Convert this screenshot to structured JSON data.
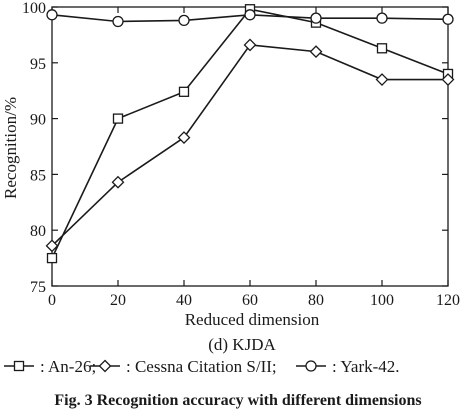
{
  "chart_data": {
    "type": "line",
    "x": [
      0,
      20,
      40,
      60,
      80,
      100,
      120
    ],
    "series": [
      {
        "name": "An-26",
        "marker": "square",
        "values": [
          77.5,
          90.0,
          92.4,
          99.8,
          98.6,
          96.3,
          94.0
        ]
      },
      {
        "name": "Cessna Citation S/II",
        "marker": "diamond",
        "values": [
          78.6,
          84.3,
          88.3,
          96.6,
          96.0,
          93.5,
          93.5
        ]
      },
      {
        "name": "Yark-42",
        "marker": "circle",
        "values": [
          99.3,
          98.7,
          98.8,
          99.3,
          99.0,
          99.0,
          98.9
        ]
      }
    ],
    "xlabel": "Reduced dimension",
    "ylabel": "Recognition/%",
    "xlim": [
      0,
      120
    ],
    "ylim": [
      75,
      100
    ],
    "xticks": [
      "0",
      "20",
      "40",
      "60",
      "80",
      "100",
      "120"
    ],
    "yticks": [
      "75",
      "80",
      "85",
      "90",
      "95",
      "100"
    ],
    "grid": false,
    "subcaption": "(d) KJDA",
    "legend": {
      "placement": "bottom",
      "entries": [
        ": An-26;",
        ": Cessna Citation S/II;",
        ": Yark-42."
      ]
    },
    "caption": "Fig. 3   Recognition accuracy with different dimensions"
  },
  "colors": {
    "line": "#1a1a1a",
    "background": "#ffffff"
  }
}
